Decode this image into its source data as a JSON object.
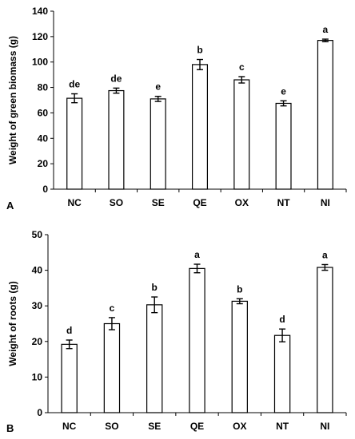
{
  "chart_data": [
    {
      "panel": "A",
      "type": "bar",
      "ylabel": "Weight of green biomass (g)",
      "ylim": [
        0,
        140
      ],
      "yticks": [
        0,
        20,
        40,
        60,
        80,
        100,
        120,
        140
      ],
      "categories": [
        "NC",
        "SO",
        "SE",
        "QE",
        "OX",
        "NT",
        "NI"
      ],
      "values": [
        71.5,
        77.5,
        71,
        98,
        86,
        67.5,
        117
      ],
      "errors": [
        3.5,
        2,
        2,
        4,
        2.5,
        2,
        1
      ],
      "letters": [
        "de",
        "de",
        "e",
        "b",
        "c",
        "e",
        "a"
      ],
      "grid": false,
      "bar_fill": "#ffffff",
      "bar_stroke": "#000000"
    },
    {
      "panel": "B",
      "type": "bar",
      "ylabel": "Weight of roots (g)",
      "ylim": [
        0,
        50
      ],
      "yticks": [
        0,
        10,
        20,
        30,
        40,
        50
      ],
      "categories": [
        "NC",
        "SO",
        "SE",
        "QE",
        "OX",
        "NT",
        "NI"
      ],
      "values": [
        19.2,
        25,
        30.3,
        40.5,
        31.3,
        21.7,
        40.8
      ],
      "errors": [
        1.2,
        1.7,
        2.2,
        1.2,
        0.7,
        1.8,
        0.8
      ],
      "letters": [
        "d",
        "c",
        "b",
        "a",
        "b",
        "d",
        "a"
      ],
      "grid": false,
      "bar_fill": "#ffffff",
      "bar_stroke": "#000000"
    }
  ]
}
